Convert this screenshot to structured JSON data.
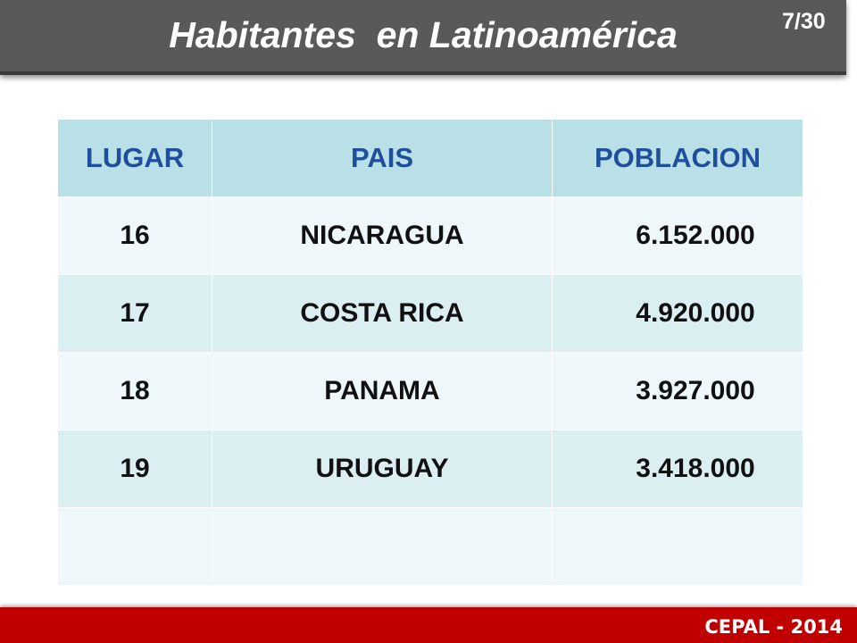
{
  "title": "Habitantes  en Latinoamérica",
  "slide_number": "7/30",
  "footer": "CEPAL - 2014",
  "table": {
    "headers": [
      "LUGAR",
      "PAIS",
      "POBLACION"
    ],
    "rows": [
      [
        "16",
        "NICARAGUA",
        "6.152.000"
      ],
      [
        "17",
        "COSTA RICA",
        "4.920.000"
      ],
      [
        "18",
        "PANAMA",
        "3.927.000"
      ],
      [
        "19",
        "URUGUAY",
        "3.418.000"
      ],
      [
        "",
        "",
        ""
      ]
    ]
  },
  "colors": {
    "title_bar": "#595959",
    "header_bg": "#b9e0e6",
    "header_text": "#1f4e9c",
    "row_odd": "#dbeef2",
    "row_even": "#eef7f9",
    "footer_bar": "#c00000"
  }
}
